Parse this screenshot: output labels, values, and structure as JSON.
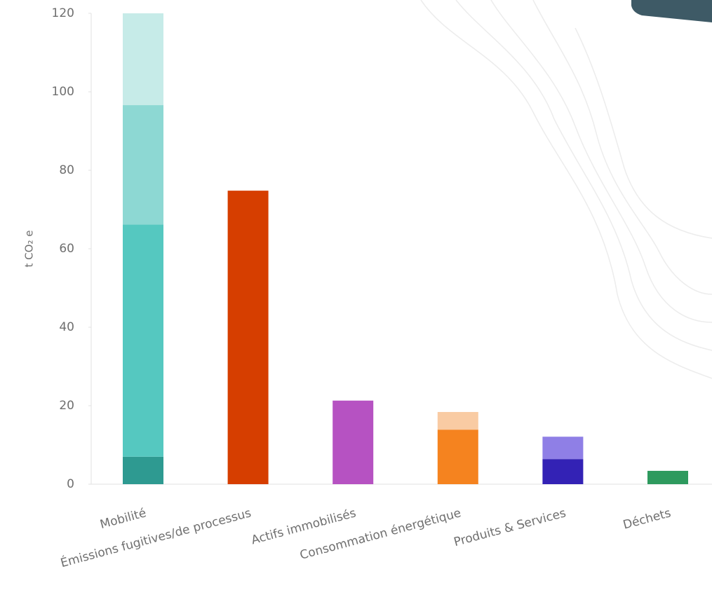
{
  "chart_data": {
    "type": "stacked-bar",
    "y_label": "t CO₂ e",
    "categories": [
      "Mobilité",
      "Émissions fugitives/de processus",
      "Actifs immobilisés",
      "Consommation énergétique",
      "Produits & Services",
      "Déchets"
    ],
    "series": [
      {
        "colors": [
          "#2e9a91",
          "#d63e00",
          "#b652c2",
          "#f5831f",
          "#3322b5",
          "#2e9a5e"
        ],
        "values": [
          7.0,
          74.8,
          21.3,
          13.9,
          6.4,
          3.4
        ]
      },
      {
        "colors": [
          "#55c8c0",
          null,
          null,
          "#f9cba3",
          "#8f7fe6",
          null
        ],
        "values": [
          59.2,
          null,
          null,
          4.5,
          5.7,
          null
        ]
      },
      {
        "colors": [
          "#8dd8d3",
          null,
          null,
          null,
          null,
          null
        ],
        "values": [
          30.4,
          null,
          null,
          null,
          null,
          null
        ]
      },
      {
        "colors": [
          "#c6ebe8",
          null,
          null,
          null,
          null,
          null
        ],
        "values": [
          23.4,
          null,
          null,
          null,
          null,
          null
        ]
      }
    ],
    "ylim": [
      0,
      120
    ],
    "yticks": [
      0,
      20,
      40,
      60,
      80,
      100,
      120
    ]
  }
}
